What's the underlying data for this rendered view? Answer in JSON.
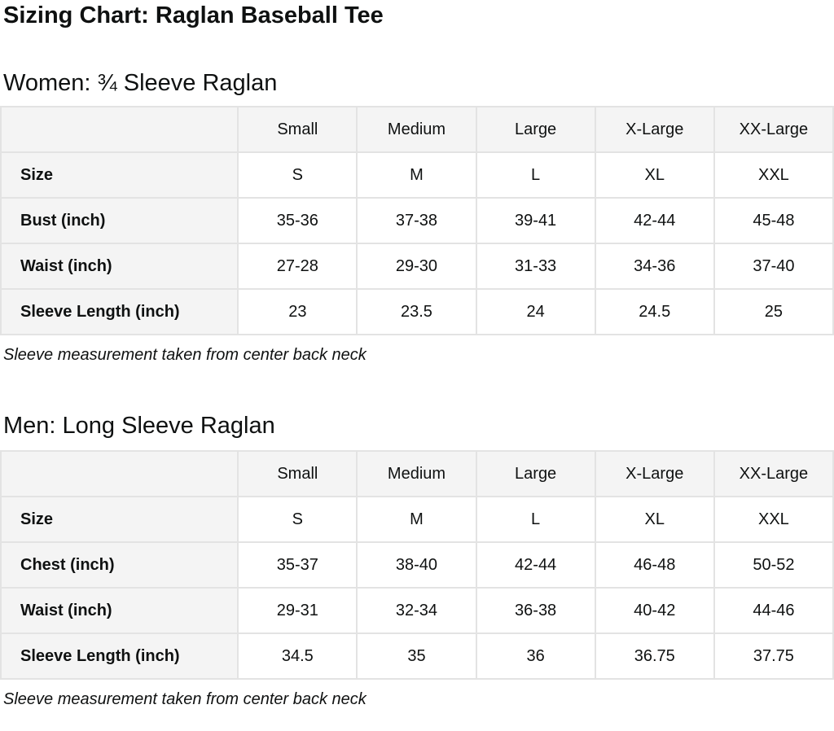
{
  "page": {
    "title": "Sizing Chart: Raglan Baseball Tee"
  },
  "colors": {
    "text": "#0f1111",
    "table_border": "#e3e3e3",
    "header_cell_background": "#f4f4f4"
  },
  "sections": [
    {
      "heading": "Women: ¾ Sleeve Raglan",
      "table": {
        "column_headers": [
          "",
          "Small",
          "Medium",
          "Large",
          "X-Large",
          "XX-Large"
        ],
        "rows": [
          {
            "label": "Size",
            "values": [
              "S",
              "M",
              "L",
              "XL",
              "XXL"
            ]
          },
          {
            "label": "Bust (inch)",
            "values": [
              "35-36",
              "37-38",
              "39-41",
              "42-44",
              "45-48"
            ]
          },
          {
            "label": "Waist (inch)",
            "values": [
              "27-28",
              "29-30",
              "31-33",
              "34-36",
              "37-40"
            ]
          },
          {
            "label": "Sleeve Length (inch)",
            "values": [
              "23",
              "23.5",
              "24",
              "24.5",
              "25"
            ]
          }
        ]
      },
      "footnote": "Sleeve measurement taken from center back neck"
    },
    {
      "heading": "Men: Long Sleeve Raglan",
      "table": {
        "column_headers": [
          "",
          "Small",
          "Medium",
          "Large",
          "X-Large",
          "XX-Large"
        ],
        "rows": [
          {
            "label": "Size",
            "values": [
              "S",
              "M",
              "L",
              "XL",
              "XXL"
            ]
          },
          {
            "label": "Chest (inch)",
            "values": [
              "35-37",
              "38-40",
              "42-44",
              "46-48",
              "50-52"
            ]
          },
          {
            "label": "Waist (inch)",
            "values": [
              "29-31",
              "32-34",
              "36-38",
              "40-42",
              "44-46"
            ]
          },
          {
            "label": "Sleeve Length (inch)",
            "values": [
              "34.5",
              "35",
              "36",
              "36.75",
              "37.75"
            ]
          }
        ]
      },
      "footnote": "Sleeve measurement taken from center back neck"
    }
  ]
}
